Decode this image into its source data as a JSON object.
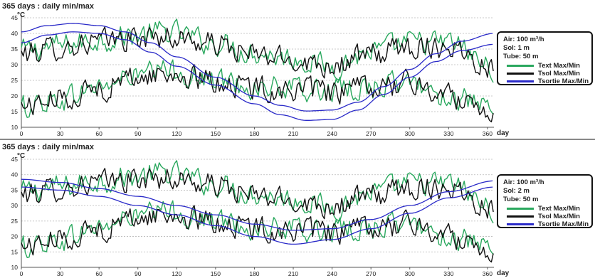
{
  "chart_data": [
    {
      "type": "line",
      "title": "365 days : daily min/max",
      "ylabel": "°C",
      "xlabel": "day",
      "xlim": [
        0,
        365
      ],
      "ylim": [
        10,
        45
      ],
      "xticks": [
        "0",
        "30",
        "60",
        "90",
        "120",
        "150",
        "180",
        "210",
        "240",
        "270",
        "300",
        "330",
        "360"
      ],
      "yticks": [
        "10",
        "15",
        "20",
        "25",
        "30",
        "35",
        "40",
        "45"
      ],
      "grid": "horizontal dashed",
      "legend_position": "right",
      "params": [
        "Air: 100 m³/h",
        "Sol: 1 m",
        "Tube: 50 m"
      ],
      "series": [
        {
          "name": "Text Max/Min",
          "color": "#2aa85e",
          "kind": "noisy",
          "max": {
            "x": [
              0,
              30,
              60,
              90,
              112,
              150,
              180,
              210,
              240,
              270,
              300,
              330,
              365
            ],
            "y": [
              34.5,
              36,
              38,
              39.5,
              40.5,
              37,
              34,
              32,
              29.5,
              34,
              37,
              37,
              29
            ]
          },
          "min": {
            "x": [
              0,
              30,
              60,
              90,
              112,
              150,
              180,
              210,
              240,
              270,
              300,
              330,
              365
            ],
            "y": [
              16.5,
              19,
              23,
              26.5,
              28,
              25,
              23,
              22,
              21.5,
              23,
              24,
              20,
              15
            ]
          }
        },
        {
          "name": "Tsol Max/Min",
          "color": "#111111",
          "kind": "noisy",
          "max": {
            "x": [
              0,
              30,
              60,
              90,
              112,
              150,
              180,
              210,
              240,
              270,
              300,
              330,
              365
            ],
            "y": [
              33.5,
              35.5,
              37.5,
              38.5,
              39,
              36.5,
              33,
              31.5,
              30,
              33,
              36,
              36,
              29.5
            ]
          },
          "min": {
            "x": [
              0,
              30,
              60,
              90,
              112,
              150,
              180,
              210,
              240,
              270,
              300,
              330,
              365
            ],
            "y": [
              17,
              19,
              22.5,
              26,
              27,
              24.5,
              22.5,
              22,
              21,
              22.5,
              24,
              20,
              15.5
            ]
          }
        },
        {
          "name": "Tsortie Max/Min",
          "color": "#2a2ac8",
          "kind": "smooth",
          "max": {
            "x": [
              0,
              20,
              40,
              60,
              80,
              100,
              120,
              150,
              180,
              200,
              220,
              240,
              260,
              280,
              300,
              320,
              340,
              365
            ],
            "y": [
              40.5,
              42.5,
              43.2,
              42.5,
              40.5,
              37,
              32.5,
              26,
              20,
              17,
              15.2,
              15.5,
              18,
              23,
              28.5,
              33.5,
              37.5,
              40
            ]
          },
          "min": {
            "x": [
              0,
              20,
              40,
              60,
              80,
              100,
              120,
              150,
              180,
              200,
              220,
              240,
              260,
              280,
              300,
              320,
              340,
              365
            ],
            "y": [
              37,
              39.5,
              40.5,
              40,
              38,
              34,
              29.5,
              23.5,
              17.5,
              14,
              12.2,
              12.5,
              15.5,
              20.5,
              26,
              31,
              34.5,
              36.5
            ]
          }
        }
      ]
    },
    {
      "type": "line",
      "title": "365 days : daily min/max",
      "ylabel": "°C",
      "xlabel": "day",
      "xlim": [
        0,
        365
      ],
      "ylim": [
        10,
        45
      ],
      "xticks": [
        "0",
        "30",
        "60",
        "90",
        "120",
        "150",
        "180",
        "210",
        "240",
        "270",
        "300",
        "330",
        "360"
      ],
      "yticks": [
        "10",
        "15",
        "20",
        "25",
        "30",
        "35",
        "40",
        "45"
      ],
      "grid": "horizontal dashed",
      "legend_position": "right",
      "params": [
        "Air: 100 m³/h",
        "Sol: 2 m",
        "Tube: 50 m"
      ],
      "series": [
        {
          "name": "Text Max/Min",
          "color": "#2aa85e",
          "kind": "noisy",
          "max": {
            "x": [
              0,
              30,
              60,
              90,
              112,
              150,
              180,
              210,
              240,
              270,
              300,
              330,
              365
            ],
            "y": [
              34.5,
              36,
              38,
              39.5,
              40.5,
              37,
              34,
              32,
              29.5,
              34,
              37,
              37,
              29
            ]
          },
          "min": {
            "x": [
              0,
              30,
              60,
              90,
              112,
              150,
              180,
              210,
              240,
              270,
              300,
              330,
              365
            ],
            "y": [
              16.5,
              19,
              23,
              26.5,
              28,
              25,
              23,
              22,
              21.5,
              23,
              24,
              20,
              15
            ]
          }
        },
        {
          "name": "Tsol Max/Min",
          "color": "#111111",
          "kind": "noisy",
          "max": {
            "x": [
              0,
              30,
              60,
              90,
              112,
              150,
              180,
              210,
              240,
              270,
              300,
              330,
              365
            ],
            "y": [
              33.5,
              35.5,
              37.5,
              38.5,
              39,
              36.5,
              33,
              31.5,
              30,
              33,
              36,
              36,
              29.5
            ]
          },
          "min": {
            "x": [
              0,
              30,
              60,
              90,
              112,
              150,
              180,
              210,
              240,
              270,
              300,
              330,
              365
            ],
            "y": [
              17,
              19,
              22.5,
              26,
              27,
              24.5,
              22.5,
              22,
              21,
              22.5,
              24,
              20,
              15.5
            ]
          }
        },
        {
          "name": "Tsortie Max/Min",
          "color": "#2a2ac8",
          "kind": "smooth",
          "max": {
            "x": [
              0,
              30,
              60,
              90,
              120,
              150,
              180,
              210,
              240,
              270,
              300,
              330,
              365
            ],
            "y": [
              38.5,
              37.5,
              35.5,
              33,
              30,
              27,
              24,
              22,
              22.5,
              25.5,
              30,
              34.5,
              38
            ]
          },
          "min": {
            "x": [
              0,
              30,
              60,
              90,
              120,
              150,
              180,
              210,
              240,
              270,
              300,
              330,
              365
            ],
            "y": [
              36,
              35,
              33,
              30,
              27,
              23.5,
              20,
              17.5,
              19,
              22.5,
              27.5,
              32.5,
              36
            ]
          }
        }
      ]
    }
  ]
}
